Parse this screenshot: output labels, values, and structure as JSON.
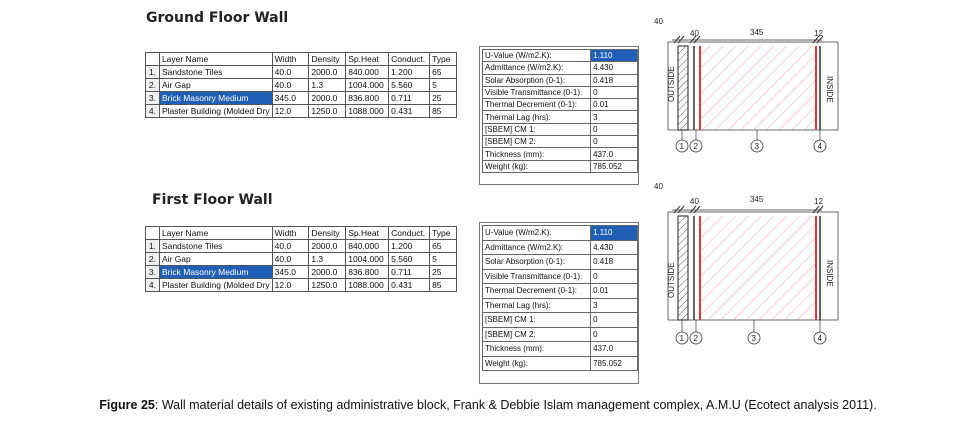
{
  "ground": {
    "title": "Ground Floor Wall",
    "headers": [
      "Layer Name",
      "Width",
      "Density",
      "Sp.Heat",
      "Conduct.",
      "Type"
    ],
    "rows": [
      {
        "idx": "1.",
        "name": "Sandstone Tiles",
        "width": "40.0",
        "density": "2000.0",
        "spheat": "840.000",
        "conduct": "1.200",
        "type": "65"
      },
      {
        "idx": "2.",
        "name": "Air Gap",
        "width": "40.0",
        "density": "1.3",
        "spheat": "1004.000",
        "conduct": "5.560",
        "type": "5"
      },
      {
        "idx": "3.",
        "name": "Brick Masonry Medium",
        "width": "345.0",
        "density": "2000.0",
        "spheat": "836.800",
        "conduct": "0.711",
        "type": "25"
      },
      {
        "idx": "4.",
        "name": "Plaster Building (Molded Dry",
        "width": "12.0",
        "density": "1250.0",
        "spheat": "1088.000",
        "conduct": "0.431",
        "type": "85"
      }
    ],
    "props": [
      {
        "k": "U-Value (W/m2.K):",
        "v": "1.110"
      },
      {
        "k": "Admittance (W/m2.K):",
        "v": "4.430"
      },
      {
        "k": "Solar Absorption (0-1):",
        "v": "0.418"
      },
      {
        "k": "Visible Transmittance (0-1):",
        "v": "0"
      },
      {
        "k": "Thermal Decrement (0-1):",
        "v": "0.01"
      },
      {
        "k": "Thermal Lag (hrs):",
        "v": "3"
      },
      {
        "k": "[SBEM] CM 1:",
        "v": "0"
      },
      {
        "k": "[SBEM] CM 2:",
        "v": "0"
      },
      {
        "k": "Thickness (mm):",
        "v": "437.0"
      },
      {
        "k": "Weight (kg):",
        "v": "785.052"
      }
    ]
  },
  "first": {
    "title": "First Floor Wall",
    "headers": [
      "Layer Name",
      "Width",
      "Density",
      "Sp.Heat",
      "Conduct.",
      "Type"
    ],
    "rows": [
      {
        "idx": "1.",
        "name": "Sandstone Tiles",
        "width": "40.0",
        "density": "2000.0",
        "spheat": "840.000",
        "conduct": "1.200",
        "type": "65"
      },
      {
        "idx": "2.",
        "name": "Air Gap",
        "width": "40.0",
        "density": "1.3",
        "spheat": "1004.000",
        "conduct": "5.560",
        "type": "5"
      },
      {
        "idx": "3.",
        "name": "Brick Masonry Medium",
        "width": "345.0",
        "density": "2000.0",
        "spheat": "836.800",
        "conduct": "0.711",
        "type": "25"
      },
      {
        "idx": "4.",
        "name": "Plaster Building (Molded Dry",
        "width": "12.0",
        "density": "1250.0",
        "spheat": "1088.000",
        "conduct": "0.431",
        "type": "85"
      }
    ],
    "props": [
      {
        "k": "U-Value (W/m2.K):",
        "v": "1.110"
      },
      {
        "k": "Admittance (W/m2.K):",
        "v": "4.430"
      },
      {
        "k": "Solar Absorption (0-1):",
        "v": "0.418"
      },
      {
        "k": "Visible Transmittance (0-1):",
        "v": "0"
      },
      {
        "k": "Thermal Decrement (0-1):",
        "v": "0.01"
      },
      {
        "k": "Thermal Lag (hrs):",
        "v": "3"
      },
      {
        "k": "[SBEM] CM 1:",
        "v": "0"
      },
      {
        "k": "[SBEM] CM 2:",
        "v": "0"
      },
      {
        "k": "Thickness (mm):",
        "v": "437.0"
      },
      {
        "k": "Weight (kg):",
        "v": "785.052"
      }
    ]
  },
  "diagram": {
    "dims": [
      "40",
      "40",
      "345",
      "12"
    ],
    "outside": "OUTSIDE",
    "inside": "INSIDE",
    "markers": [
      "1",
      "2",
      "3",
      "4"
    ]
  },
  "caption": {
    "label": "Figure 25",
    "text": ": Wall material details of existing administrative block, Frank & Debbie Islam management complex, A.M.U (Ecotect analysis 2011)."
  }
}
